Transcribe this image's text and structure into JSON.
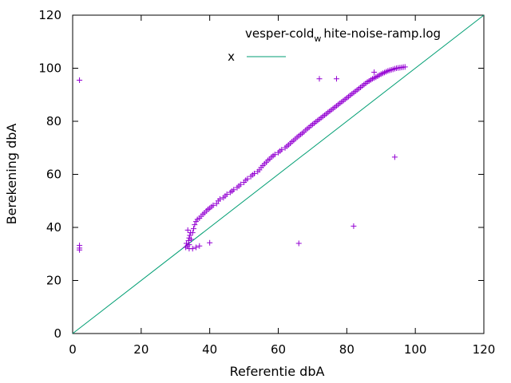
{
  "chart_data": {
    "type": "scatter",
    "title": "vesper-cold_white-noise-ramp.log",
    "title_parts": {
      "before": "vesper-cold",
      "sub": "w",
      "after": "hite-noise-ramp.log"
    },
    "xlabel": "Referentie dbA",
    "ylabel": "Berekening dbA",
    "xlim": [
      0,
      120
    ],
    "ylim": [
      0,
      120
    ],
    "xticks": [
      0,
      20,
      40,
      60,
      80,
      100,
      120
    ],
    "yticks": [
      0,
      20,
      40,
      60,
      80,
      100,
      120
    ],
    "grid": false,
    "legend_position": "top-right",
    "series": [
      {
        "name": "",
        "type": "scatter",
        "color": "#9400d3",
        "marker": "plus",
        "points": [
          [
            2,
            95.5
          ],
          [
            2,
            33.2
          ],
          [
            2,
            32.2
          ],
          [
            2,
            31.5
          ],
          [
            33,
            32.5
          ],
          [
            33.5,
            33
          ],
          [
            34,
            32
          ],
          [
            33.2,
            34
          ],
          [
            33.8,
            35
          ],
          [
            34,
            36
          ],
          [
            34.2,
            37
          ],
          [
            34.4,
            38
          ],
          [
            33.6,
            39
          ],
          [
            34,
            33.5
          ],
          [
            34.6,
            35.5
          ],
          [
            35,
            32
          ],
          [
            36,
            32.5
          ],
          [
            37,
            33
          ],
          [
            40,
            34.2
          ],
          [
            35,
            38
          ],
          [
            35.3,
            39.5
          ],
          [
            35.6,
            41
          ],
          [
            36,
            42.2
          ],
          [
            36.4,
            43
          ],
          [
            37,
            43.5
          ],
          [
            37.5,
            44.2
          ],
          [
            38,
            45
          ],
          [
            38.5,
            45.5
          ],
          [
            39,
            46.2
          ],
          [
            39.5,
            46.8
          ],
          [
            40,
            47.2
          ],
          [
            40.5,
            47.8
          ],
          [
            41,
            48.3
          ],
          [
            42,
            49
          ],
          [
            42.5,
            50
          ],
          [
            43,
            50.7
          ],
          [
            44,
            51.2
          ],
          [
            44.5,
            51.8
          ],
          [
            45,
            52.5
          ],
          [
            46,
            53.2
          ],
          [
            46.5,
            53.7
          ],
          [
            47,
            54.2
          ],
          [
            48,
            55
          ],
          [
            48.5,
            55.6
          ],
          [
            49,
            56.2
          ],
          [
            50,
            57
          ],
          [
            50.5,
            57.8
          ],
          [
            51,
            58.3
          ],
          [
            52,
            59.2
          ],
          [
            52.5,
            59.8
          ],
          [
            53,
            60.3
          ],
          [
            54,
            61
          ],
          [
            54.5,
            61.7
          ],
          [
            55,
            62.6
          ],
          [
            55.5,
            63.3
          ],
          [
            56,
            64
          ],
          [
            56.5,
            64.6
          ],
          [
            57,
            65.3
          ],
          [
            57.5,
            65.8
          ],
          [
            58,
            66.5
          ],
          [
            58.5,
            67
          ],
          [
            59,
            67.5
          ],
          [
            60,
            68.2
          ],
          [
            60.5,
            68.8
          ],
          [
            61,
            69.3
          ],
          [
            62,
            70
          ],
          [
            62.5,
            70.6
          ],
          [
            63,
            71.1
          ],
          [
            63.5,
            71.7
          ],
          [
            64,
            72.3
          ],
          [
            64.5,
            72.8
          ],
          [
            65,
            73.4
          ],
          [
            65.5,
            74
          ],
          [
            66,
            74.5
          ],
          [
            66.5,
            75
          ],
          [
            67,
            75.5
          ],
          [
            67.5,
            76
          ],
          [
            68,
            76.7
          ],
          [
            68.5,
            77.2
          ],
          [
            69,
            77.7
          ],
          [
            69.5,
            78.3
          ],
          [
            70,
            78.8
          ],
          [
            70.5,
            79.3
          ],
          [
            71,
            79.8
          ],
          [
            71.5,
            80.3
          ],
          [
            72,
            80.8
          ],
          [
            72.5,
            81.3
          ],
          [
            73,
            81.8
          ],
          [
            73.5,
            82.3
          ],
          [
            74,
            82.8
          ],
          [
            74.5,
            83.3
          ],
          [
            75,
            83.8
          ],
          [
            75.5,
            84.3
          ],
          [
            76,
            84.8
          ],
          [
            76.5,
            85.3
          ],
          [
            77,
            85.8
          ],
          [
            77.5,
            86.3
          ],
          [
            78,
            86.8
          ],
          [
            78.5,
            87.3
          ],
          [
            79,
            87.8
          ],
          [
            79.5,
            88.3
          ],
          [
            80,
            88.8
          ],
          [
            80.5,
            89.3
          ],
          [
            81,
            89.8
          ],
          [
            81.5,
            90.3
          ],
          [
            82,
            90.8
          ],
          [
            82.5,
            91.3
          ],
          [
            83,
            91.8
          ],
          [
            83.5,
            92.3
          ],
          [
            84,
            92.8
          ],
          [
            84.5,
            93.3
          ],
          [
            85,
            93.8
          ],
          [
            85.5,
            94.3
          ],
          [
            86,
            94.8
          ],
          [
            86.5,
            95.2
          ],
          [
            87,
            95.6
          ],
          [
            87.5,
            96
          ],
          [
            88,
            96.3
          ],
          [
            88.5,
            96.6
          ],
          [
            89,
            97
          ],
          [
            89.5,
            97.4
          ],
          [
            90,
            97.8
          ],
          [
            90.5,
            98.1
          ],
          [
            91,
            98.4
          ],
          [
            91.5,
            98.7
          ],
          [
            92,
            99
          ],
          [
            92.5,
            99.2
          ],
          [
            93,
            99.4
          ],
          [
            93.5,
            99.6
          ],
          [
            94,
            99.8
          ],
          [
            94.5,
            100
          ],
          [
            95,
            100.1
          ],
          [
            95.5,
            100.2
          ],
          [
            96,
            100.3
          ],
          [
            96.5,
            100.4
          ],
          [
            97,
            100.5
          ],
          [
            72,
            96
          ],
          [
            77,
            96
          ],
          [
            88,
            98.5
          ],
          [
            94,
            66.5
          ],
          [
            66,
            34
          ],
          [
            82,
            40.5
          ]
        ]
      },
      {
        "name": "x",
        "type": "line",
        "color": "#009e73",
        "points": [
          [
            0,
            0
          ],
          [
            120,
            120
          ]
        ]
      }
    ]
  }
}
